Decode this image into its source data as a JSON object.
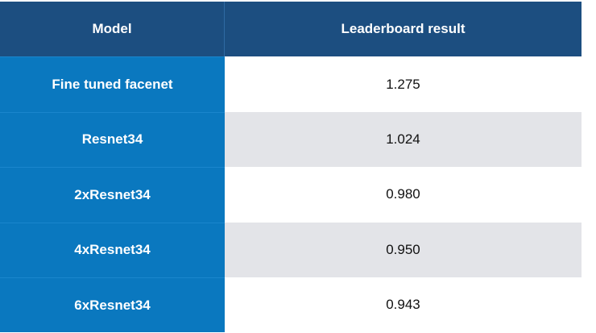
{
  "table": {
    "headers": [
      "Model",
      "Leaderboard result"
    ],
    "rows": [
      {
        "model": "Fine tuned facenet",
        "result": "1.275"
      },
      {
        "model": "Resnet34",
        "result": "1.024"
      },
      {
        "model": "2xResnet34",
        "result": "0.980"
      },
      {
        "model": "4xResnet34",
        "result": "0.950"
      },
      {
        "model": "6xResnet34",
        "result": "0.943"
      }
    ]
  },
  "colors": {
    "header_bg": "#1c4e80",
    "model_col_bg": "#0a78bf",
    "row_alt_bg": "#e3e4e8",
    "row_bg": "#ffffff"
  }
}
